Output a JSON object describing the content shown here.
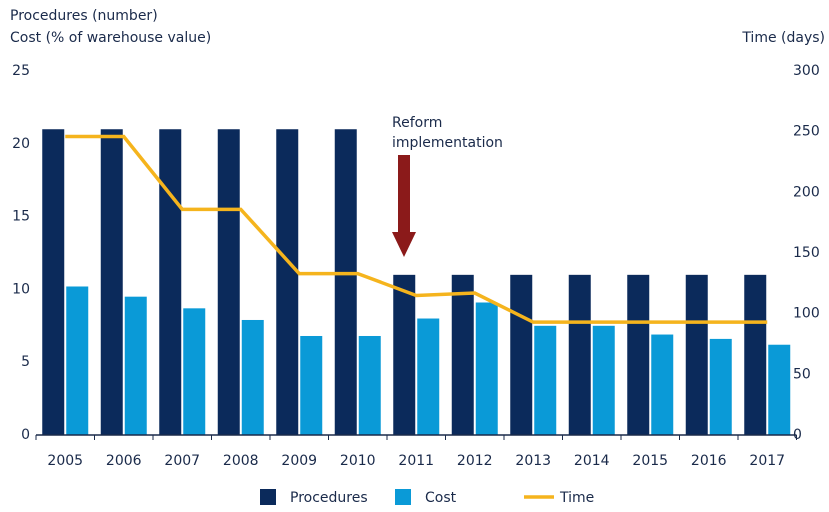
{
  "chart_data": {
    "type": "bar",
    "y_label": [
      "Procedures (number)",
      "Cost (% of warehouse value)"
    ],
    "y2_label": "Time (days)",
    "annotation": [
      "Reform",
      "implementation"
    ],
    "categories": [
      "2005",
      "2006",
      "2007",
      "2008",
      "2009",
      "2010",
      "2011",
      "2012",
      "2013",
      "2014",
      "2015",
      "2016",
      "2017"
    ],
    "series": [
      {
        "name": "Procedures",
        "type": "bar",
        "color": "#0b2a5b",
        "values": [
          21,
          21,
          21,
          21,
          21,
          21,
          11,
          11,
          11,
          11,
          11,
          11,
          11
        ]
      },
      {
        "name": "Cost",
        "type": "bar",
        "color": "#0a9ad7",
        "values": [
          10.2,
          9.5,
          8.7,
          7.9,
          6.8,
          6.8,
          8.0,
          9.1,
          7.5,
          7.5,
          6.9,
          6.6,
          6.2
        ]
      },
      {
        "name": "Time",
        "type": "line",
        "axis": "y2",
        "color": "#f5b41d",
        "values": [
          246,
          246,
          186,
          186,
          133,
          133,
          115,
          117,
          93,
          93,
          93,
          93,
          93
        ]
      }
    ],
    "ylim": [
      0,
      25
    ],
    "yticks": [
      0,
      5,
      10,
      15,
      20,
      25
    ],
    "y2lim": [
      0,
      300
    ],
    "y2ticks": [
      0,
      50,
      100,
      150,
      200,
      250,
      300
    ],
    "grid": false,
    "legend": "bottom"
  }
}
